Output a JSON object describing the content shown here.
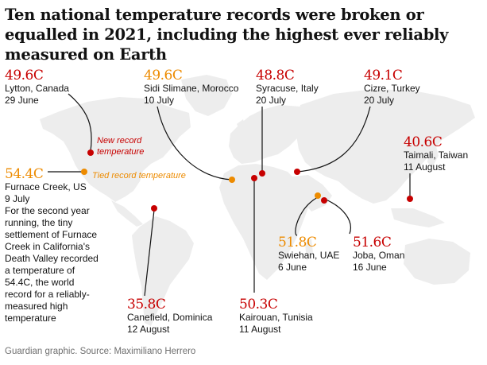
{
  "title": "Ten national temperature records were broken or equalled in 2021, including the highest ever reliably measured on Earth",
  "legend": {
    "new_label": "New record\ntemperature",
    "tied_label": "Tied record temperature",
    "new_color": "#c70000",
    "tied_color": "#ed8b00"
  },
  "records": [
    {
      "temp": "49.6C",
      "place": "Lytton, Canada",
      "date": "29 June",
      "type": "new"
    },
    {
      "temp": "49.6C",
      "place": "Sidi Slimane, Morocco",
      "date": "10 July",
      "type": "tied"
    },
    {
      "temp": "48.8C",
      "place": "Syracuse, Italy",
      "date": "20 July",
      "type": "new"
    },
    {
      "temp": "49.1C",
      "place": "Cizre, Turkey",
      "date": "20 July",
      "type": "new"
    },
    {
      "temp": "40.6C",
      "place": "Taimali, Taiwan",
      "date": "11 August",
      "type": "new"
    },
    {
      "temp": "54.4C",
      "place": "Furnace Creek, US",
      "date": "9 July",
      "type": "tied",
      "note": "For the second year running, the tiny settlement of Furnace Creek in California's Death Valley recorded a temperature of 54.4C, the world record for a reliably-measured high temperature"
    },
    {
      "temp": "35.8C",
      "place": "Canefield, Dominica",
      "date": "12 August",
      "type": "new"
    },
    {
      "temp": "50.3C",
      "place": "Kairouan, Tunisia",
      "date": "11 August",
      "type": "new"
    },
    {
      "temp": "51.8C",
      "place": "Swiehan, UAE",
      "date": "6 June",
      "type": "tied"
    },
    {
      "temp": "51.6C",
      "place": "Joba, Oman",
      "date": "16 June",
      "type": "new"
    }
  ],
  "source": "Guardian graphic. Source: Maximiliano Herrero"
}
